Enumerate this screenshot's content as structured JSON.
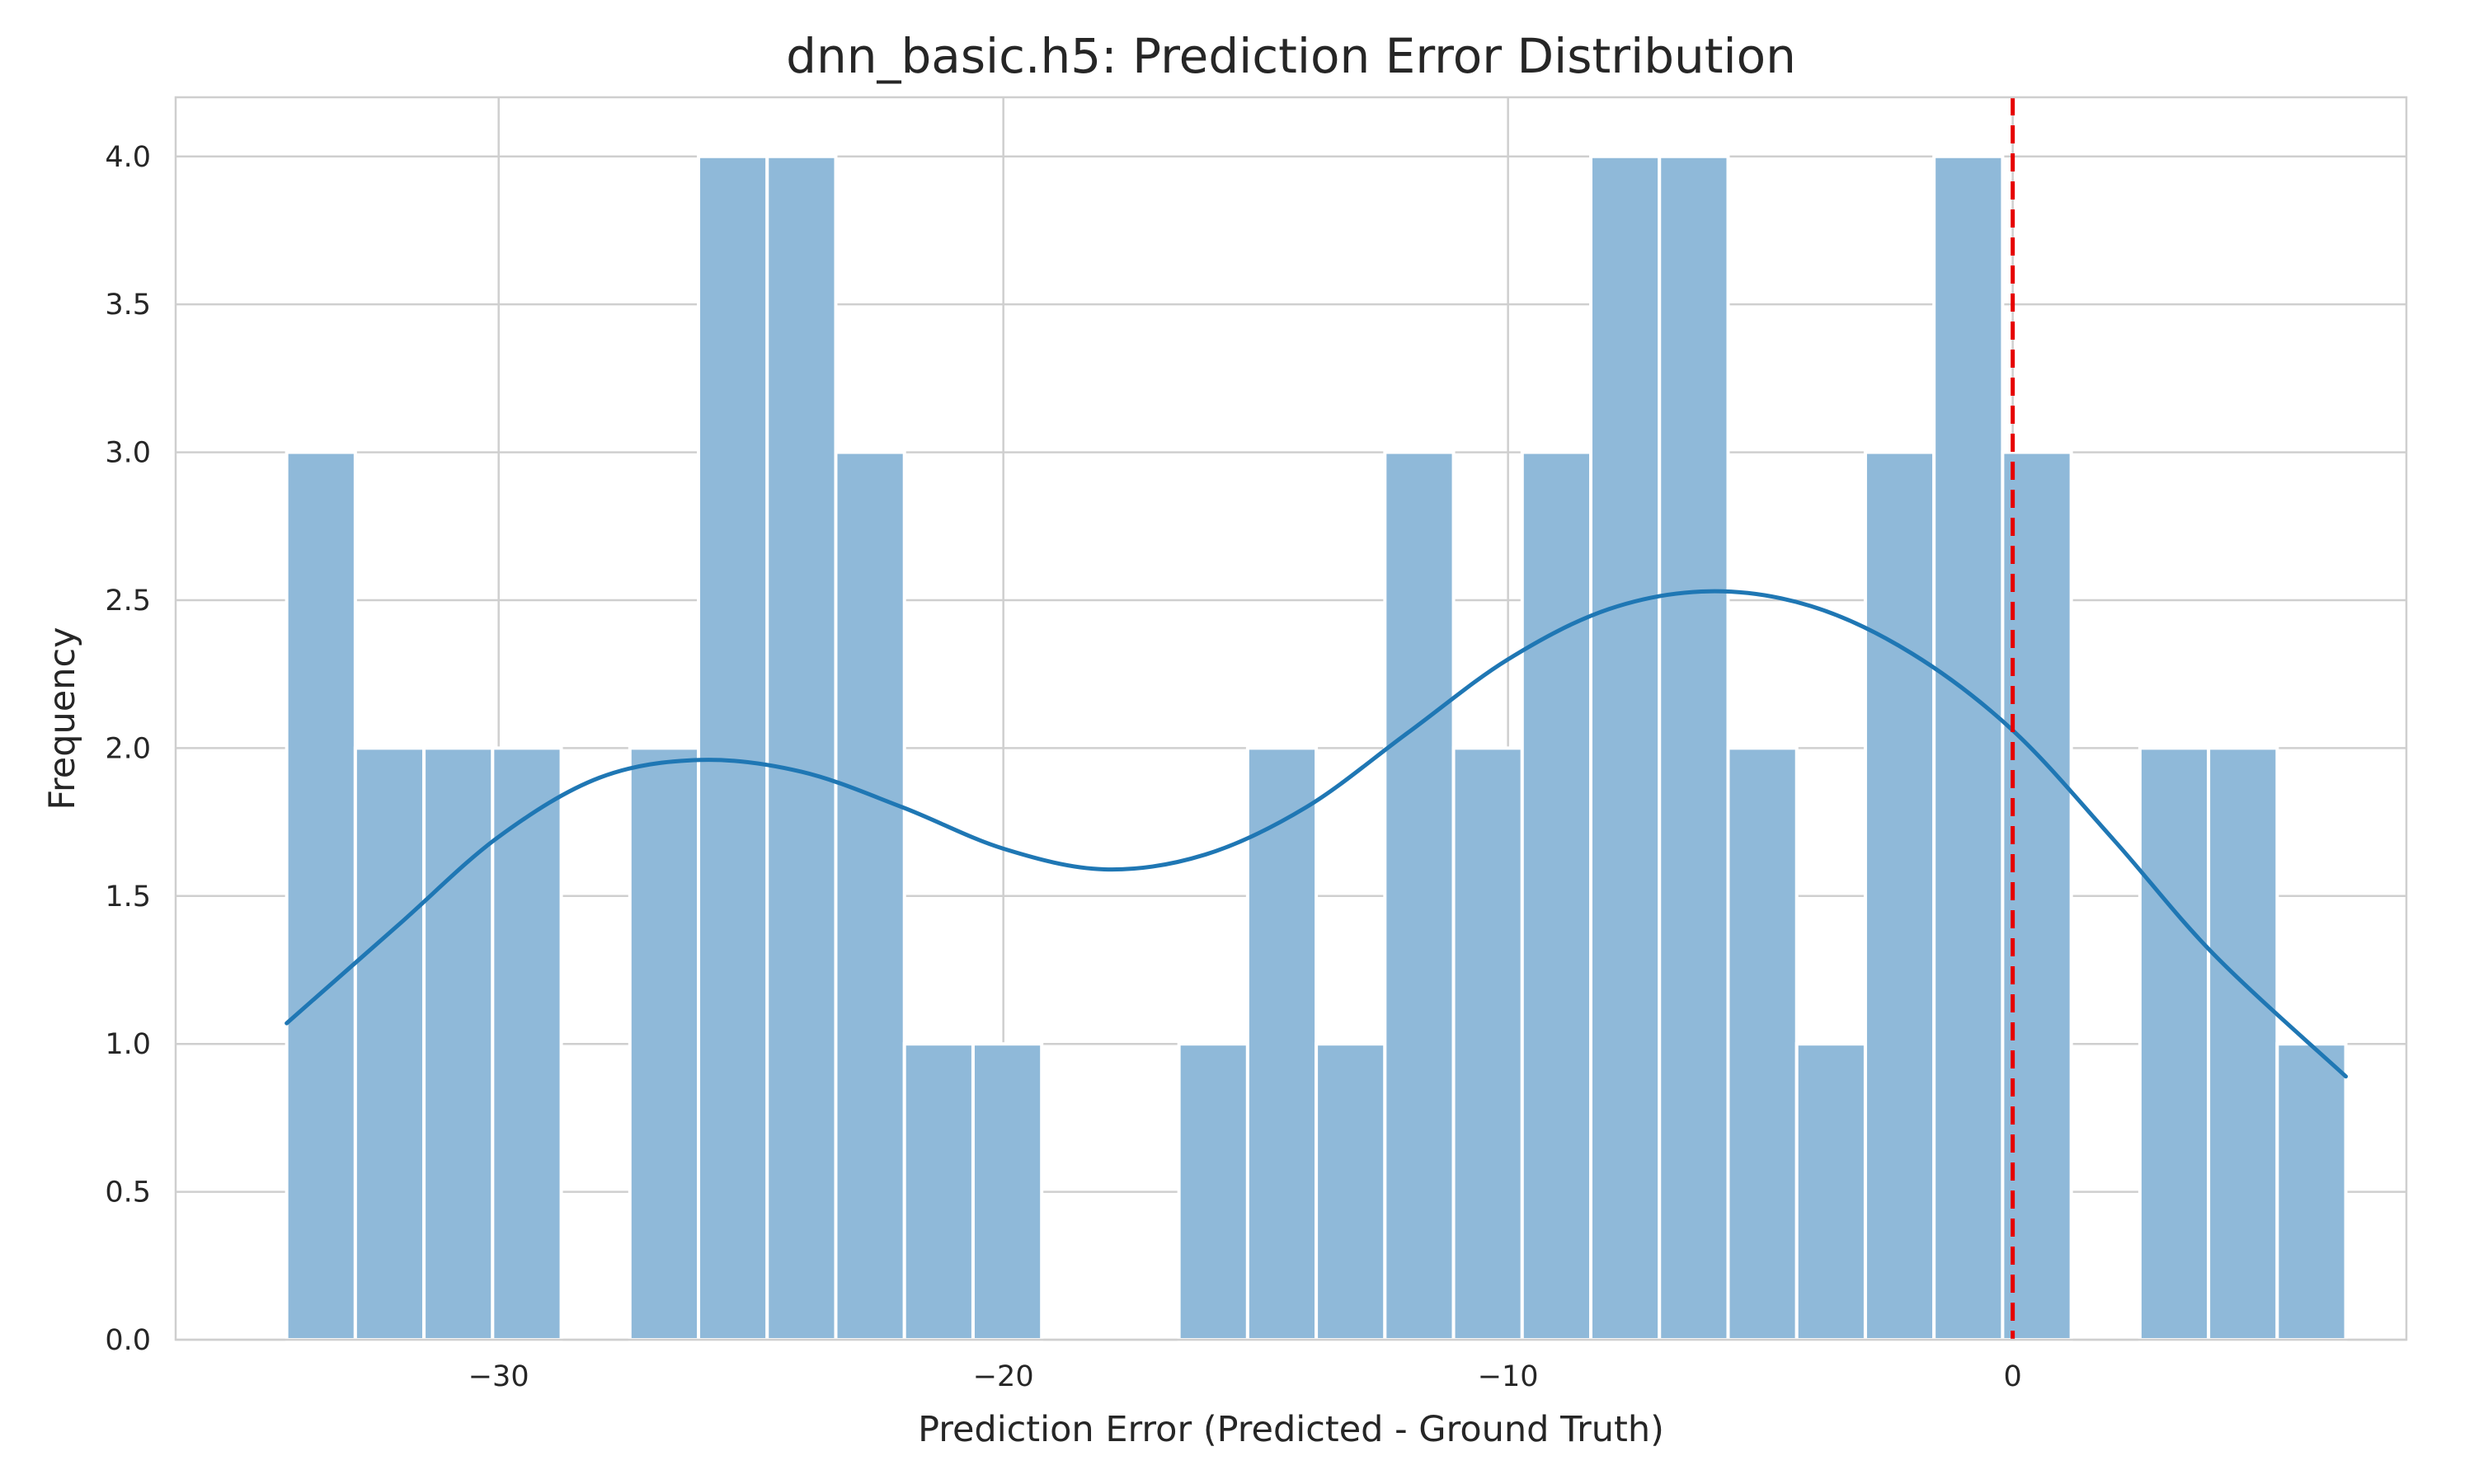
{
  "chart_data": {
    "type": "bar",
    "subtype": "histogram-with-kde",
    "title": "dnn_basic.h5: Prediction Error Distribution",
    "xlabel": "Prediction Error (Predicted - Ground Truth)",
    "ylabel": "Frequency",
    "xlim": [
      -36.4,
      7.8
    ],
    "ylim": [
      0,
      4.2
    ],
    "x_ticks": [
      -30,
      -20,
      -10,
      0
    ],
    "x_tick_labels": [
      "−30",
      "−20",
      "−10",
      "0"
    ],
    "y_ticks": [
      0.0,
      0.5,
      1.0,
      1.5,
      2.0,
      2.5,
      3.0,
      3.5,
      4.0
    ],
    "y_tick_labels": [
      "0.0",
      "0.5",
      "1.0",
      "1.5",
      "2.0",
      "2.5",
      "3.0",
      "3.5",
      "4.0"
    ],
    "grid": true,
    "bins": {
      "start": -34.2,
      "width": 1.36,
      "counts": [
        3,
        2,
        2,
        2,
        0,
        2,
        4,
        4,
        3,
        1,
        1,
        0,
        0,
        1,
        2,
        1,
        3,
        2,
        3,
        4,
        4,
        2,
        1,
        3,
        4,
        3,
        0,
        2,
        2,
        1
      ]
    },
    "kde": {
      "name": "KDE",
      "x": [
        -34.2,
        -32,
        -30,
        -28,
        -26,
        -24,
        -22,
        -20,
        -18,
        -16,
        -14,
        -12,
        -10,
        -8,
        -6,
        -4,
        -2,
        0,
        2,
        4,
        6.6
      ],
      "y": [
        1.07,
        1.4,
        1.7,
        1.9,
        1.96,
        1.92,
        1.8,
        1.66,
        1.59,
        1.64,
        1.8,
        2.05,
        2.3,
        2.47,
        2.53,
        2.48,
        2.32,
        2.06,
        1.69,
        1.3,
        0.89
      ]
    },
    "reference_line": {
      "x": 0,
      "style": "dashed",
      "color": "#e60000"
    },
    "colors": {
      "bar": "#8fb9d9",
      "kde": "#1f77b4",
      "grid": "#cfcfcf",
      "reference": "#e60000"
    }
  }
}
